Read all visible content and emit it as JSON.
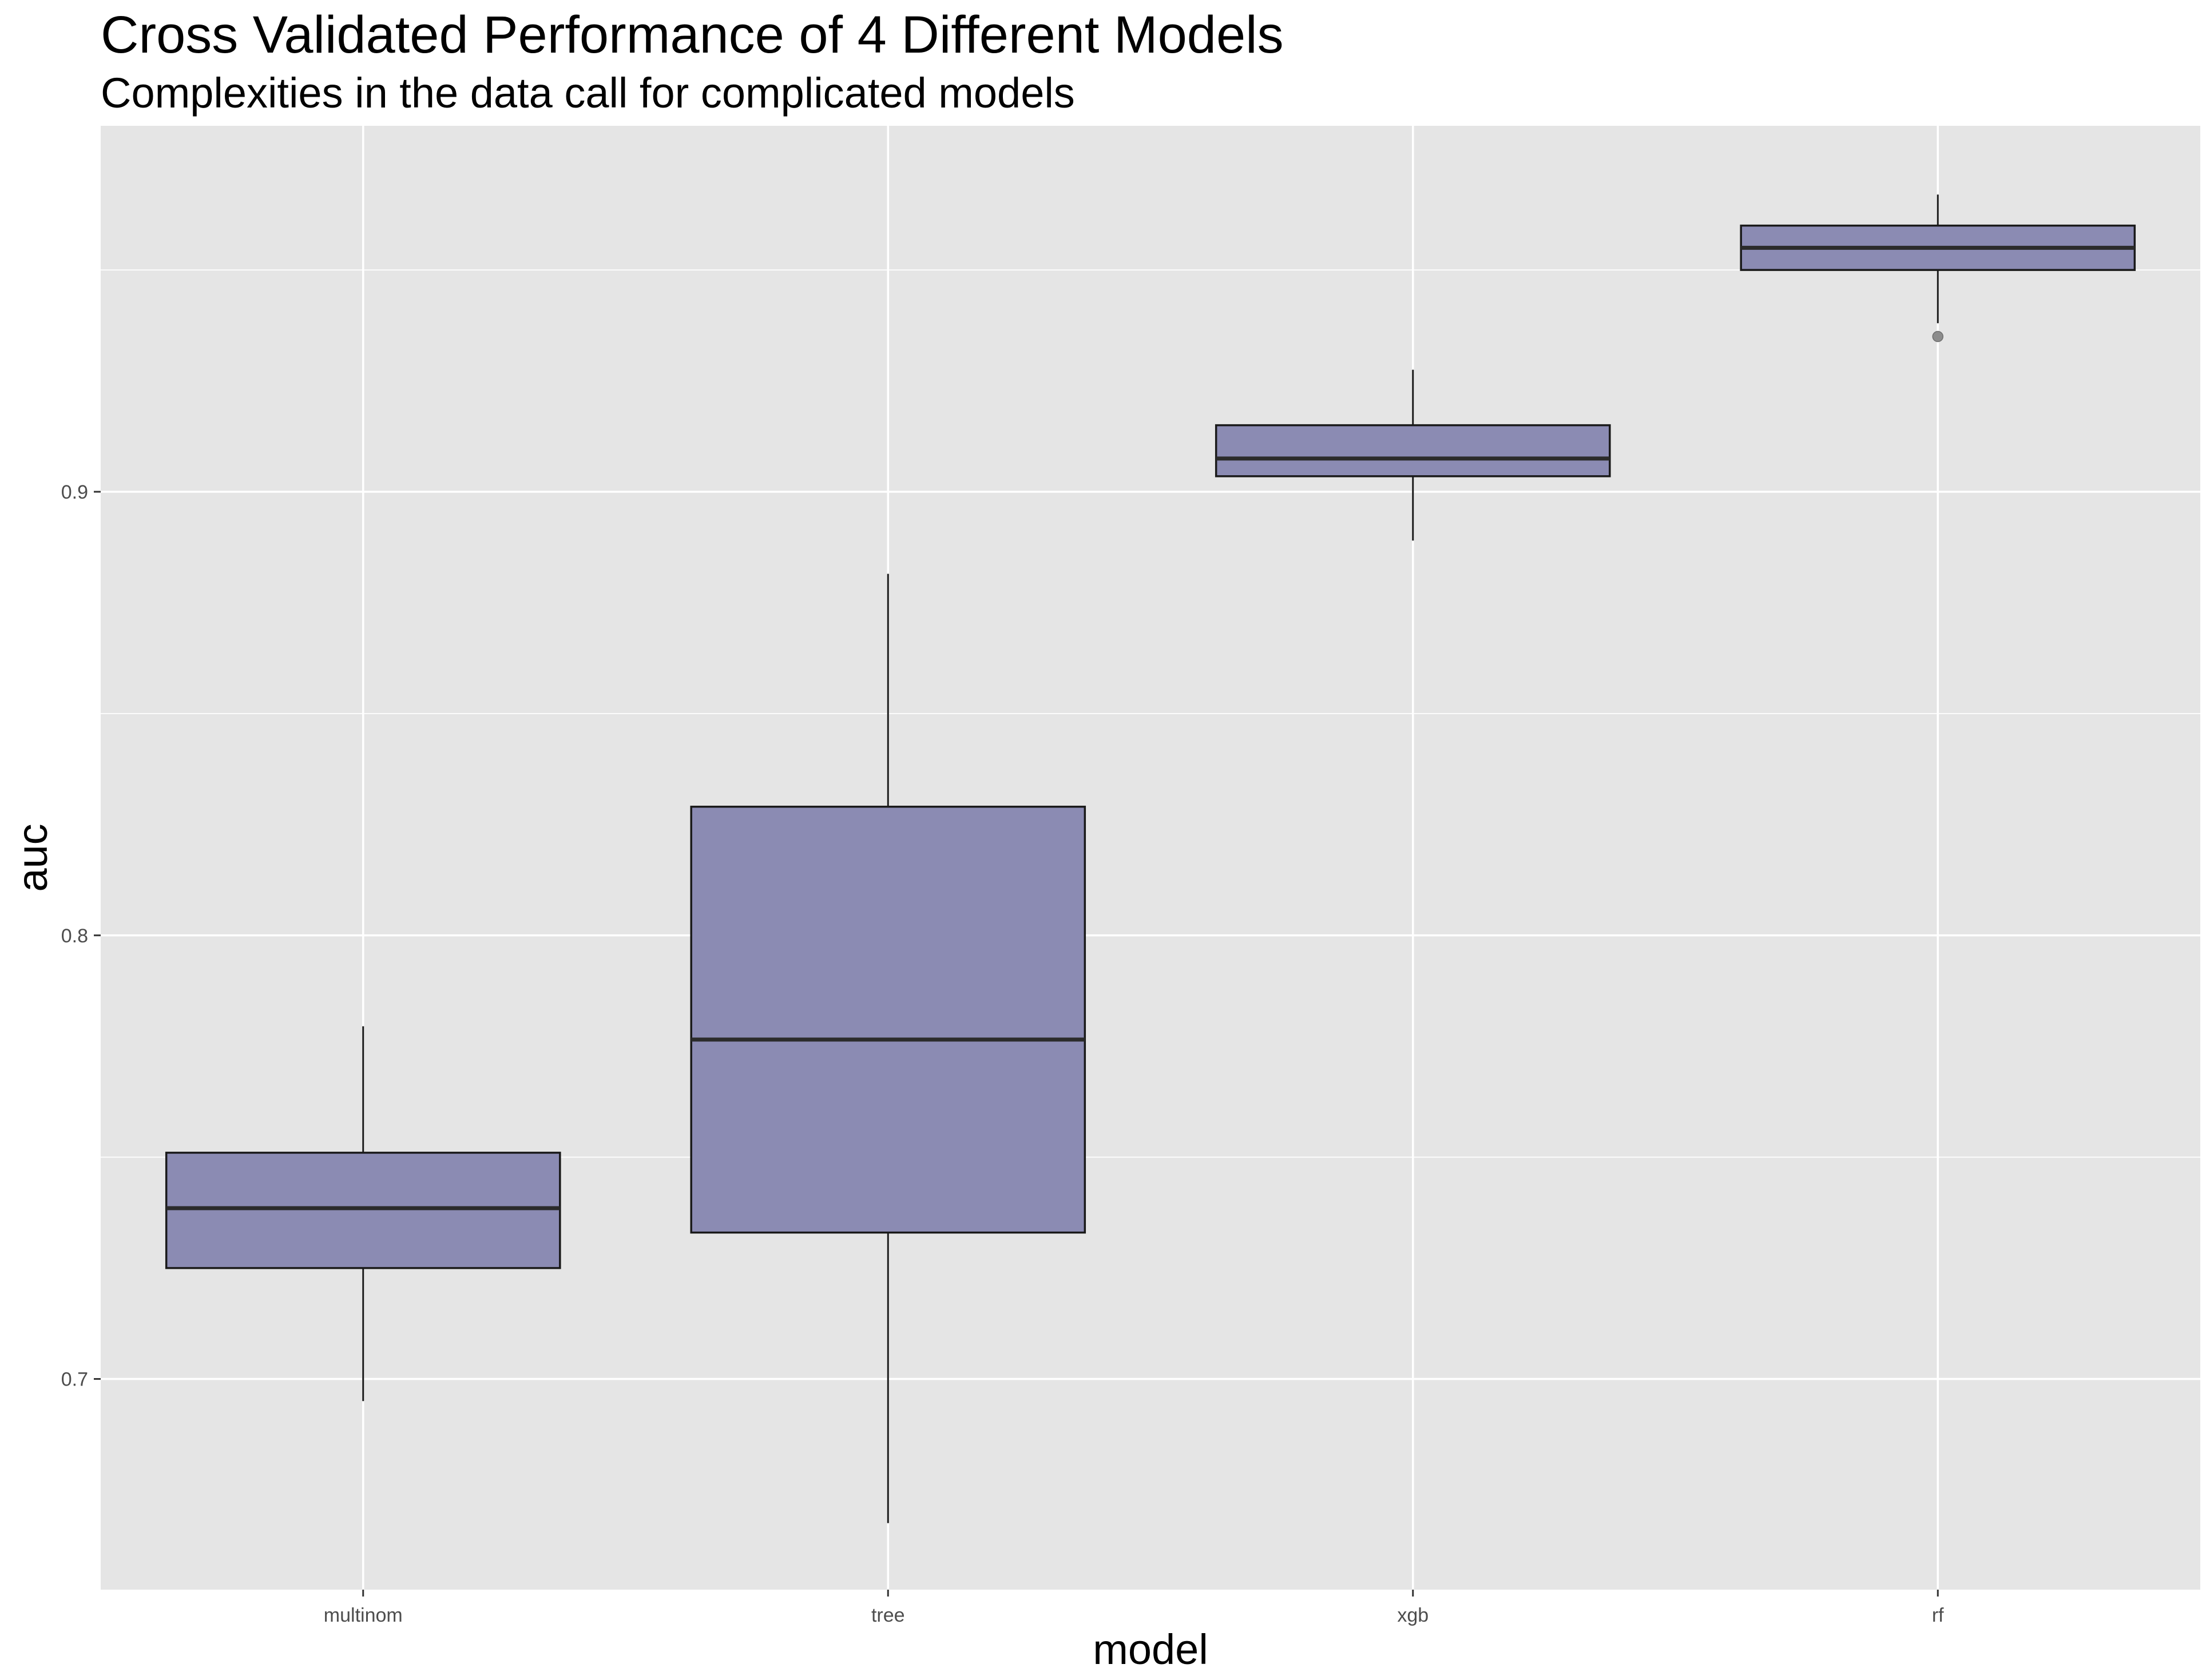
{
  "chart_data": {
    "type": "boxplot",
    "title": "Cross Validated Performance of 4 Different Models",
    "subtitle": "Complexities in the data call for complicated models",
    "xlabel": "model",
    "ylabel": "auc",
    "categories": [
      "multinom",
      "tree",
      "xgb",
      "rf"
    ],
    "yticks": [
      0.7,
      0.8,
      0.9
    ],
    "ytick_labels": [
      "0.7",
      "0.8",
      "0.9"
    ],
    "ylim": [
      0.6525,
      0.9825
    ],
    "grid": true,
    "legend": "none",
    "boxes": [
      {
        "category": "multinom",
        "whisker_low": 0.695,
        "q1": 0.725,
        "median": 0.7385,
        "q3": 0.751,
        "whisker_high": 0.7795,
        "outliers": []
      },
      {
        "category": "tree",
        "whisker_low": 0.6675,
        "q1": 0.733,
        "median": 0.7765,
        "q3": 0.829,
        "whisker_high": 0.8815,
        "outliers": []
      },
      {
        "category": "xgb",
        "whisker_low": 0.889,
        "q1": 0.9035,
        "median": 0.9075,
        "q3": 0.915,
        "whisker_high": 0.9275,
        "outliers": []
      },
      {
        "category": "rf",
        "whisker_low": 0.938,
        "q1": 0.95,
        "median": 0.955,
        "q3": 0.96,
        "whisker_high": 0.967,
        "outliers": [
          0.935
        ]
      }
    ],
    "colors": {
      "panel_background": "#e5e5e5",
      "grid_line": "#ffffff",
      "box_fill": "#8b8bb3",
      "box_stroke": "#1a1a1a",
      "median_line": "#2b2b2b",
      "outlier_fill": "#8c8c8c",
      "text": "#000000",
      "tick_text": "#4d4d4d"
    }
  }
}
